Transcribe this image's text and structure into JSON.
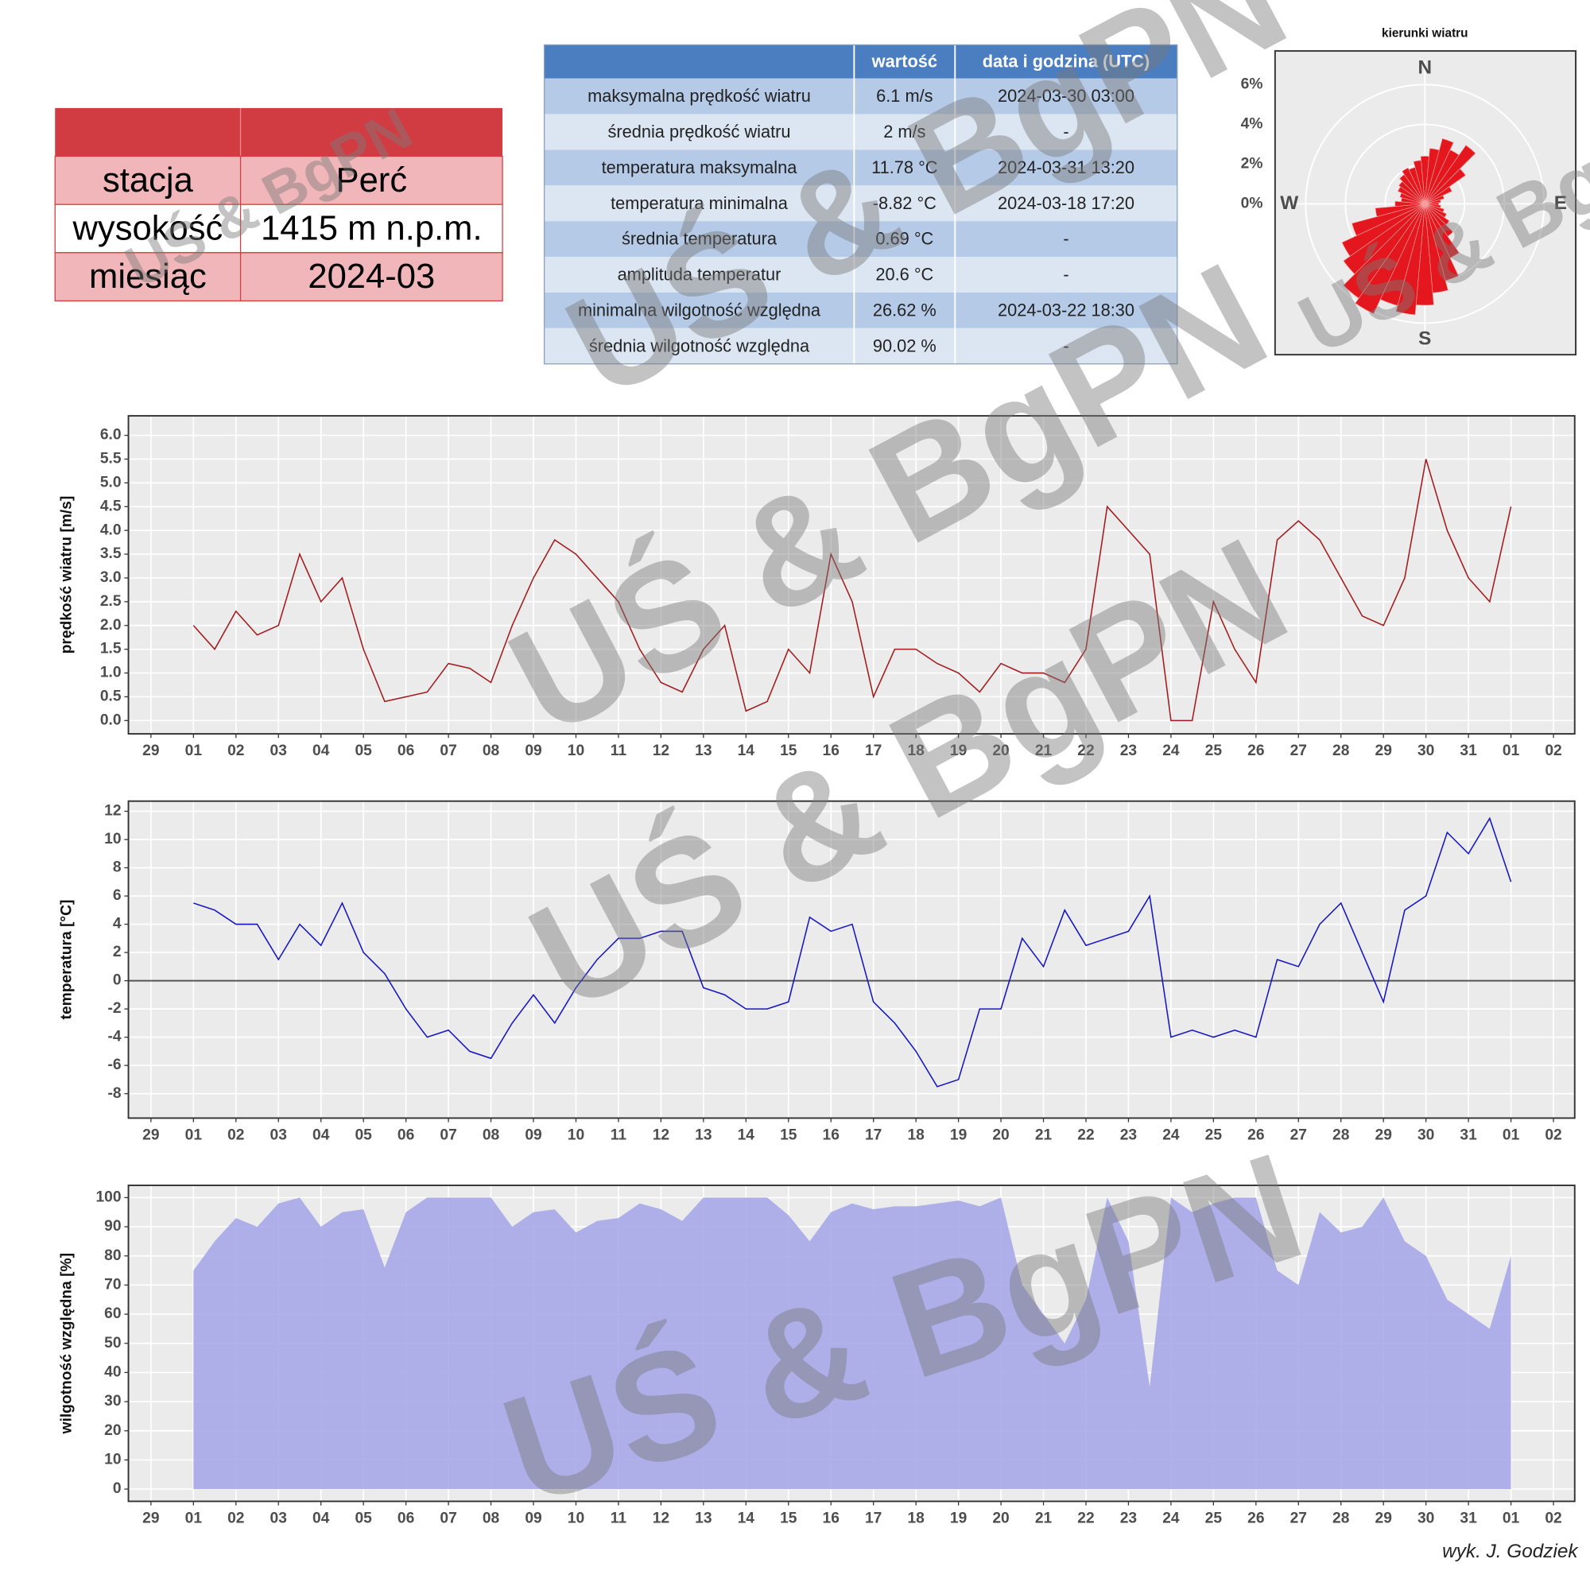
{
  "watermark": "UŚ & BgPN",
  "footer": "wyk. J. Godziek",
  "station_table": {
    "rows": [
      [
        "stacja",
        "Perć"
      ],
      [
        "wysokość",
        "1415 m n.p.m."
      ],
      [
        "miesiąc",
        "2024-03"
      ]
    ]
  },
  "stats_table": {
    "header": [
      "wartość",
      "data i godzina (UTC)"
    ],
    "rows": [
      [
        "maksymalna prędkość wiatru",
        "6.1 m/s",
        "2024-03-30 03:00"
      ],
      [
        "średnia prędkość wiatru",
        "2 m/s",
        "-"
      ],
      [
        "temperatura maksymalna",
        "11.78 °C",
        "2024-03-31 13:20"
      ],
      [
        "temperatura minimalna",
        "-8.82 °C",
        "2024-03-18 17:20"
      ],
      [
        "średnia temperatura",
        "0.69 °C",
        "-"
      ],
      [
        "amplituda temperatur",
        "20.6 °C",
        "-"
      ],
      [
        "minimalna wilgotność względna",
        "26.62 %",
        "2024-03-22 18:30"
      ],
      [
        "średnia wilgotność względna",
        "90.02 %",
        "-"
      ]
    ]
  },
  "chart_data": [
    {
      "type": "polar_bar",
      "title": "kierunki wiatru",
      "color": "#e3171d",
      "direction_labels": [
        "N",
        "E",
        "S",
        "W"
      ],
      "x": [
        0,
        10,
        20,
        30,
        40,
        50,
        60,
        70,
        80,
        90,
        100,
        110,
        120,
        130,
        140,
        150,
        160,
        170,
        180,
        190,
        200,
        210,
        220,
        230,
        240,
        250,
        260,
        270,
        280,
        290,
        300,
        310,
        320,
        330,
        340,
        350
      ],
      "values": [
        2.4,
        2.8,
        3.4,
        3.0,
        3.6,
        2.5,
        1.5,
        1.0,
        0.8,
        0.7,
        0.8,
        1.0,
        1.2,
        1.5,
        2.0,
        3.0,
        4.0,
        4.5,
        5.1,
        5.6,
        5.3,
        6.1,
        5.8,
        5.0,
        4.6,
        3.8,
        2.5,
        1.5,
        1.2,
        1.3,
        1.5,
        1.6,
        1.8,
        2.0,
        1.9,
        2.2
      ],
      "rlim": [
        0,
        6
      ],
      "rticks": [
        {
          "value": 0,
          "label": "0%"
        },
        {
          "value": 2,
          "label": "2%"
        },
        {
          "value": 4,
          "label": "4%"
        },
        {
          "value": 6,
          "label": "6%"
        }
      ]
    },
    {
      "type": "line",
      "ylabel": "prędkość wiatru [m/s]",
      "color": "#a3191b",
      "grid": true,
      "x": [
        1,
        1.5,
        2,
        2.5,
        3,
        3.5,
        4,
        4.5,
        5,
        5.5,
        6,
        6.5,
        7,
        7.5,
        8,
        8.5,
        9,
        9.5,
        10,
        10.5,
        11,
        11.5,
        12,
        12.5,
        13,
        13.5,
        14,
        14.5,
        15,
        15.5,
        16,
        16.5,
        17,
        17.5,
        18,
        18.5,
        19,
        19.5,
        20,
        20.5,
        21,
        21.5,
        22,
        22.5,
        23,
        23.5,
        24,
        24.5,
        25,
        25.5,
        26,
        26.5,
        27,
        27.5,
        28,
        28.5,
        29,
        29.5,
        30,
        30.5,
        31,
        31.5,
        32
      ],
      "values": [
        2.0,
        1.5,
        2.3,
        1.8,
        2.0,
        3.5,
        2.5,
        3.0,
        1.5,
        0.4,
        0.5,
        0.6,
        1.2,
        1.1,
        0.8,
        2.0,
        3.0,
        3.8,
        3.5,
        3.0,
        2.5,
        1.5,
        0.8,
        0.6,
        1.5,
        2.0,
        0.2,
        0.4,
        1.5,
        1.0,
        3.5,
        2.5,
        0.5,
        1.5,
        1.5,
        1.2,
        1.0,
        0.6,
        1.2,
        1.0,
        1.0,
        0.8,
        1.5,
        4.5,
        4.0,
        3.5,
        0.0,
        0.0,
        2.5,
        1.5,
        0.8,
        3.8,
        4.2,
        3.8,
        3.0,
        2.2,
        2.0,
        3.0,
        5.5,
        4.0,
        3.0,
        2.5,
        4.5
      ],
      "xlim": [
        -0.53,
        33.5
      ],
      "xticks": [
        {
          "value": 0,
          "label": "29"
        },
        {
          "value": 1,
          "label": "01"
        },
        {
          "value": 2,
          "label": "02"
        },
        {
          "value": 3,
          "label": "03"
        },
        {
          "value": 4,
          "label": "04"
        },
        {
          "value": 5,
          "label": "05"
        },
        {
          "value": 6,
          "label": "06"
        },
        {
          "value": 7,
          "label": "07"
        },
        {
          "value": 8,
          "label": "08"
        },
        {
          "value": 9,
          "label": "09"
        },
        10,
        11,
        12,
        13,
        14,
        15,
        16,
        17,
        18,
        19,
        20,
        21,
        22,
        23,
        24,
        25,
        26,
        27,
        28,
        29,
        30,
        31,
        {
          "value": 32,
          "label": "01"
        },
        {
          "value": 33,
          "label": "02"
        }
      ],
      "ylim": [
        -0.28,
        6.41
      ],
      "yticks": [
        {
          "value": 0,
          "label": "0.0"
        },
        0.5,
        {
          "value": 1,
          "label": "1.0"
        },
        1.5,
        {
          "value": 2,
          "label": "2.0"
        },
        2.5,
        {
          "value": 3,
          "label": "3.0"
        },
        3.5,
        {
          "value": 4,
          "label": "4.0"
        },
        4.5,
        {
          "value": 5,
          "label": "5.0"
        },
        5.5,
        {
          "value": 6,
          "label": "6.0"
        }
      ]
    },
    {
      "type": "line",
      "ylabel": "temperatura [°C]",
      "color": "#1414c4",
      "grid": true,
      "zero_line": true,
      "x": [
        1,
        1.5,
        2,
        2.5,
        3,
        3.5,
        4,
        4.5,
        5,
        5.5,
        6,
        6.5,
        7,
        7.5,
        8,
        8.5,
        9,
        9.5,
        10,
        10.5,
        11,
        11.5,
        12,
        12.5,
        13,
        13.5,
        14,
        14.5,
        15,
        15.5,
        16,
        16.5,
        17,
        17.5,
        18,
        18.5,
        19,
        19.5,
        20,
        20.5,
        21,
        21.5,
        22,
        22.5,
        23,
        23.5,
        24,
        24.5,
        25,
        25.5,
        26,
        26.5,
        27,
        27.5,
        28,
        28.5,
        29,
        29.5,
        30,
        30.5,
        31,
        31.5,
        32
      ],
      "values": [
        5.5,
        5.0,
        4.0,
        4.0,
        1.5,
        4.0,
        2.5,
        5.5,
        2.0,
        0.5,
        -2.0,
        -4.0,
        -3.5,
        -5.0,
        -5.5,
        -3.0,
        -1.0,
        -3.0,
        -0.5,
        1.5,
        3.0,
        3.0,
        3.5,
        3.5,
        -0.5,
        -1.0,
        -2.0,
        -2.0,
        -1.5,
        4.5,
        3.5,
        4.0,
        -1.5,
        -3.0,
        -5.0,
        -7.5,
        -7.0,
        -2.0,
        -2.0,
        3.0,
        1.0,
        5.0,
        2.5,
        3.0,
        3.5,
        6.0,
        -4.0,
        -3.5,
        -4.0,
        -3.5,
        -4.0,
        1.5,
        1.0,
        4.0,
        5.5,
        2.0,
        -1.5,
        5.0,
        6.0,
        10.5,
        9.0,
        11.5,
        7.0
      ],
      "xlim": [
        -0.53,
        33.5
      ],
      "xticks": [
        {
          "value": 0,
          "label": "29"
        },
        {
          "value": 1,
          "label": "01"
        },
        {
          "value": 2,
          "label": "02"
        },
        {
          "value": 3,
          "label": "03"
        },
        {
          "value": 4,
          "label": "04"
        },
        {
          "value": 5,
          "label": "05"
        },
        {
          "value": 6,
          "label": "06"
        },
        {
          "value": 7,
          "label": "07"
        },
        {
          "value": 8,
          "label": "08"
        },
        {
          "value": 9,
          "label": "09"
        },
        10,
        11,
        12,
        13,
        14,
        15,
        16,
        17,
        18,
        19,
        20,
        21,
        22,
        23,
        24,
        25,
        26,
        27,
        28,
        29,
        30,
        31,
        {
          "value": 32,
          "label": "01"
        },
        {
          "value": 33,
          "label": "02"
        }
      ],
      "ylim": [
        -9.73,
        12.72
      ],
      "yticks": [
        -8,
        -6,
        -4,
        -2,
        0,
        2,
        4,
        6,
        8,
        10,
        12
      ]
    },
    {
      "type": "area",
      "ylabel": "wilgotność względna [%]",
      "color": "#a7a7e9",
      "grid": true,
      "x": [
        1,
        1.5,
        2,
        2.5,
        3,
        3.5,
        4,
        4.5,
        5,
        5.5,
        6,
        6.5,
        7,
        7.5,
        8,
        8.5,
        9,
        9.5,
        10,
        10.5,
        11,
        11.5,
        12,
        12.5,
        13,
        13.5,
        14,
        14.5,
        15,
        15.5,
        16,
        16.5,
        17,
        17.5,
        18,
        18.5,
        19,
        19.5,
        20,
        20.5,
        21,
        21.5,
        22,
        22.5,
        23,
        23.5,
        24,
        24.5,
        25,
        25.5,
        26,
        26.5,
        27,
        27.5,
        28,
        28.5,
        29,
        29.5,
        30,
        30.5,
        31,
        31.5,
        32
      ],
      "values": [
        75,
        85,
        93,
        90,
        98,
        100,
        90,
        95,
        96,
        76,
        95,
        100,
        100,
        100,
        100,
        90,
        95,
        96,
        88,
        92,
        93,
        98,
        96,
        92,
        100,
        100,
        100,
        100,
        94,
        85,
        95,
        98,
        96,
        97,
        97,
        98,
        99,
        97,
        100,
        70,
        60,
        50,
        65,
        100,
        85,
        35,
        100,
        95,
        98,
        100,
        100,
        75,
        70,
        95,
        88,
        90,
        100,
        85,
        80,
        65,
        60,
        55,
        80
      ],
      "xlim": [
        -0.53,
        33.5
      ],
      "xticks": [
        {
          "value": 0,
          "label": "29"
        },
        {
          "value": 1,
          "label": "01"
        },
        {
          "value": 2,
          "label": "02"
        },
        {
          "value": 3,
          "label": "03"
        },
        {
          "value": 4,
          "label": "04"
        },
        {
          "value": 5,
          "label": "05"
        },
        {
          "value": 6,
          "label": "06"
        },
        {
          "value": 7,
          "label": "07"
        },
        {
          "value": 8,
          "label": "08"
        },
        {
          "value": 9,
          "label": "09"
        },
        10,
        11,
        12,
        13,
        14,
        15,
        16,
        17,
        18,
        19,
        20,
        21,
        22,
        23,
        24,
        25,
        26,
        27,
        28,
        29,
        30,
        31,
        {
          "value": 32,
          "label": "01"
        },
        {
          "value": 33,
          "label": "02"
        }
      ],
      "ylim": [
        -4.2,
        104.2
      ],
      "yticks": [
        0,
        10,
        20,
        30,
        40,
        50,
        60,
        70,
        80,
        90,
        100
      ]
    }
  ]
}
